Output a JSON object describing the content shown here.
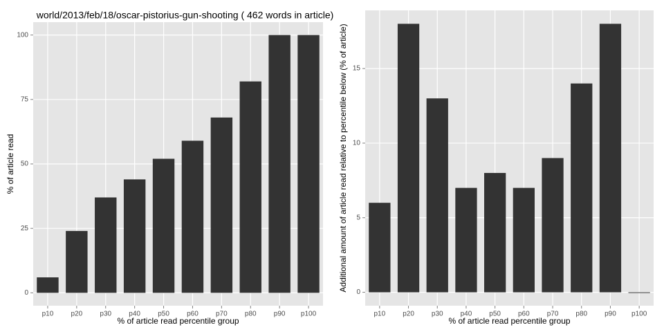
{
  "chart_data": [
    {
      "type": "bar",
      "title": "world/2013/feb/18/oscar-pistorius-gun-shooting ( 462 words in article)",
      "x_label": "% of article read percentile group",
      "y_label": "% of article read",
      "categories": [
        "p10",
        "p20",
        "p30",
        "p40",
        "p50",
        "p60",
        "p70",
        "p80",
        "p90",
        "p100"
      ],
      "values": [
        6,
        24,
        37,
        44,
        52,
        59,
        68,
        82,
        100,
        100
      ],
      "color": "#333333",
      "ylim": [
        -5,
        105
      ],
      "yticks": [
        0,
        25,
        50,
        75,
        100
      ],
      "grid": true
    },
    {
      "type": "bar",
      "x_label": "% of article read percentile group",
      "y_label": "Additional amount of article read relative to percentile below (% of article)",
      "categories": [
        "p10",
        "p20",
        "p30",
        "p40",
        "p50",
        "p60",
        "p70",
        "p80",
        "p90",
        "p100"
      ],
      "values": [
        6,
        18,
        13,
        7,
        8,
        7,
        9,
        14,
        18,
        0
      ],
      "color": "#333333",
      "ylim": [
        -0.9,
        18.9
      ],
      "yticks": [
        0,
        5,
        10,
        15
      ],
      "grid": true
    }
  ]
}
